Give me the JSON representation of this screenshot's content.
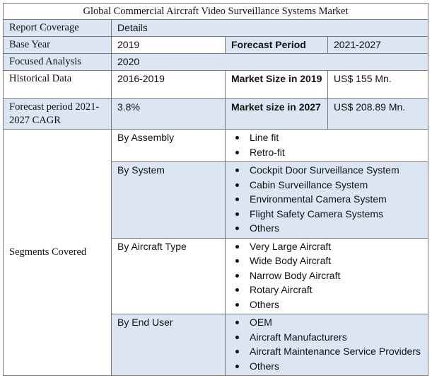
{
  "title": "Global Commercial Aircraft Video Surveillance Systems Market",
  "header": {
    "col1": "Report Coverage",
    "col2": "Details"
  },
  "rows": {
    "base_year_label": "Base Year",
    "base_year_value": "2019",
    "forecast_period_label": "Forecast Period",
    "forecast_period_value": "2021-2027",
    "focused_analysis_label": "Focused Analysis",
    "focused_analysis_value": "2020",
    "historical_label": "Historical Data",
    "historical_value": "2016-2019",
    "market_size_2019_label": "Market Size in 2019",
    "market_size_2019_value": "US$ 155 Mn.",
    "cagr_label": "Forecast period 2021-2027 CAGR",
    "cagr_value": "3.8%",
    "market_size_2027_label": "Market size in 2027",
    "market_size_2027_value": "US$ 208.89 Mn."
  },
  "segments": {
    "label": "Segments Covered",
    "groups": [
      {
        "name": "By Assembly",
        "items": [
          "Line fit",
          "Retro-fit"
        ]
      },
      {
        "name": "By System",
        "items": [
          "Cockpit Door Surveillance System",
          "Cabin Surveillance System",
          "Environmental Camera System",
          "Flight Safety Camera Systems",
          "Others"
        ]
      },
      {
        "name": "By Aircraft Type",
        "items": [
          "Very Large Aircraft",
          "Wide Body Aircraft",
          "Narrow Body Aircraft",
          "Rotary Aircraft",
          "Others"
        ]
      },
      {
        "name": "By End User",
        "items": [
          "OEM",
          "Aircraft Manufacturers",
          "Aircraft Maintenance Service Providers",
          "Others"
        ]
      }
    ]
  },
  "colors": {
    "label_bg": "#dce6f2",
    "border": "#7a7a7a"
  }
}
